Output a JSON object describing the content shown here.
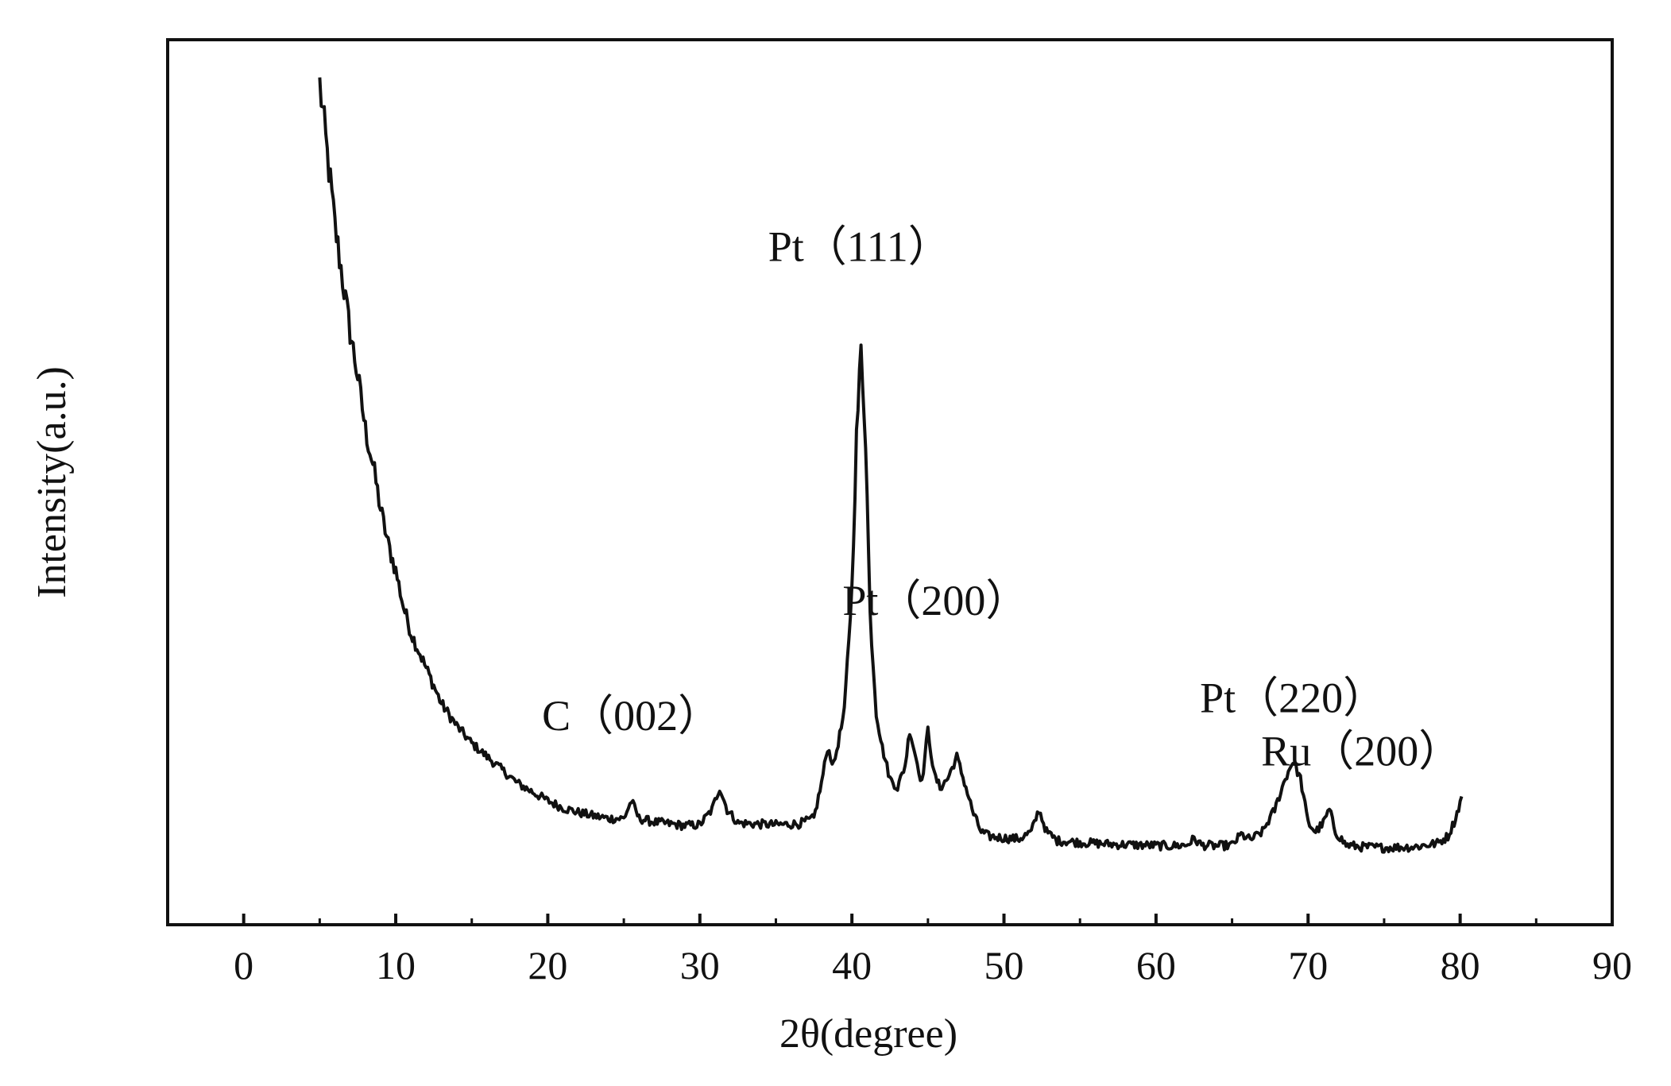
{
  "chart_data": {
    "type": "line",
    "title": "",
    "xlabel": "2θ(degree)",
    "ylabel": "Intensity(a.u.)",
    "xlim": [
      -5,
      90
    ],
    "ylim": [
      0,
      100
    ],
    "xticks": [
      0,
      10,
      20,
      30,
      40,
      50,
      60,
      70,
      80,
      90
    ],
    "xtick_labels": [
      "0",
      "10",
      "20",
      "30",
      "40",
      "50",
      "60",
      "70",
      "80",
      "90"
    ],
    "yticks": [],
    "grid": false,
    "legend": null,
    "series": [
      {
        "x": [
          5.0,
          5.5,
          6.0,
          6.5,
          7.0,
          7.5,
          8.0,
          8.5,
          9.0,
          9.5,
          10.0,
          10.5,
          11.0,
          11.5,
          12.0,
          13.0,
          14.0,
          15.0,
          16.0,
          17.0,
          18.0,
          19.0,
          20.0,
          21.0,
          22.0,
          23.0,
          24.0,
          25.0,
          25.5,
          26.0,
          27.0,
          28.0,
          29.0,
          30.0,
          30.8,
          31.3,
          31.8,
          32.5,
          33.5,
          35.0,
          36.5,
          37.5,
          38.0,
          38.4,
          38.8,
          39.5,
          40.0,
          40.3,
          40.6,
          40.9,
          41.2,
          41.6,
          42.0,
          42.5,
          43.0,
          43.5,
          43.8,
          44.2,
          44.6,
          45.0,
          45.4,
          45.8,
          46.3,
          46.9,
          47.5,
          48.0,
          48.5,
          49.0,
          50.0,
          51.0,
          51.8,
          52.3,
          52.8,
          53.5,
          55.0,
          57.0,
          59.0,
          61.0,
          62.0,
          62.5,
          63.0,
          64.0,
          65.0,
          65.6,
          66.2,
          67.0,
          67.8,
          68.5,
          69.0,
          69.5,
          70.0,
          70.5,
          71.0,
          71.4,
          71.8,
          72.5,
          73.5,
          75.0,
          77.0,
          78.5,
          79.2,
          79.7,
          80.1
        ],
        "y": [
          95,
          87,
          79,
          73,
          67,
          62,
          56,
          52,
          47,
          43,
          40,
          36,
          33,
          31,
          29,
          25,
          22.5,
          20.5,
          19,
          17.5,
          16,
          15,
          14,
          13.2,
          12.7,
          12.3,
          12,
          12,
          14,
          12,
          11.6,
          11.4,
          11.2,
          11.3,
          13,
          15.5,
          13,
          11.5,
          11.4,
          11.3,
          11.4,
          12,
          16,
          20,
          18,
          24,
          38,
          55,
          65,
          55,
          35,
          24,
          20,
          16.5,
          15.5,
          18,
          22,
          19,
          16,
          22,
          17,
          15.5,
          16.5,
          19,
          15.5,
          12.5,
          10.5,
          10,
          9.8,
          9.7,
          10.5,
          13,
          10.5,
          9.5,
          9.3,
          9.1,
          9.0,
          8.9,
          9.0,
          9.7,
          9.0,
          8.9,
          9.0,
          10.2,
          9.6,
          10.5,
          13,
          16.5,
          18.5,
          16.5,
          11.5,
          10.5,
          11.5,
          13,
          10.5,
          9.0,
          8.8,
          8.7,
          8.8,
          9.2,
          10,
          12,
          14.5
        ]
      }
    ],
    "annotations": [
      {
        "text": "C（002）",
        "x": 25.5,
        "y": 22
      },
      {
        "text": "Pt（111）",
        "x": 40.5,
        "y": 75
      },
      {
        "text": "Pt（200）",
        "x": 45.5,
        "y": 35
      },
      {
        "text": "Pt（220）",
        "x": 69.0,
        "y": 24
      },
      {
        "text": "Ru（200）",
        "x": 73.5,
        "y": 18
      }
    ]
  }
}
